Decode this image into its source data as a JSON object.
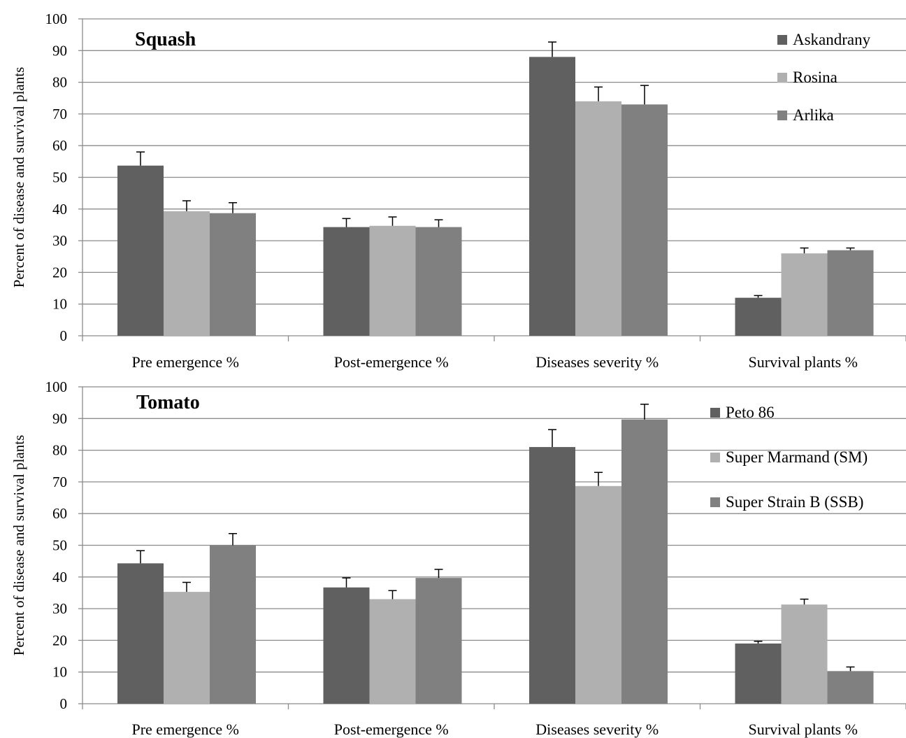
{
  "chart_data": [
    {
      "type": "bar",
      "title": "Squash",
      "ylabel": "Percent of disease and survival plants",
      "xlabel": "",
      "ylim": [
        0,
        100
      ],
      "yticks": [
        "0",
        "10",
        "20",
        "30",
        "40",
        "50",
        "60",
        "70",
        "80",
        "90",
        "100"
      ],
      "grid": true,
      "legend_position": "top-right",
      "categories": [
        "Pre emergence %",
        "Post-emergence %",
        "Diseases severity %",
        "Survival plants %"
      ],
      "series": [
        {
          "name": "Askandrany",
          "color": "#606060",
          "values": [
            53.7,
            34.3,
            88.0,
            12.0
          ],
          "errors": [
            4.3,
            2.7,
            4.7,
            0.7
          ]
        },
        {
          "name": "Rosina",
          "color": "#b0b0b0",
          "values": [
            39.3,
            34.7,
            74.0,
            26.0
          ],
          "errors": [
            3.3,
            2.8,
            4.5,
            1.7
          ]
        },
        {
          "name": "Arlika",
          "color": "#808080",
          "values": [
            38.7,
            34.3,
            73.0,
            27.0
          ],
          "errors": [
            3.3,
            2.3,
            6.0,
            0.7
          ]
        }
      ]
    },
    {
      "type": "bar",
      "title": "Tomato",
      "ylabel": "Percent of disease and survival plants",
      "xlabel": "",
      "ylim": [
        0,
        100
      ],
      "yticks": [
        "0",
        "10",
        "20",
        "30",
        "40",
        "50",
        "60",
        "70",
        "80",
        "90",
        "100"
      ],
      "grid": true,
      "legend_position": "top-right",
      "categories": [
        "Pre emergence %",
        "Post-emergence %",
        "Diseases severity %",
        "Survival plants %"
      ],
      "series": [
        {
          "name": "Peto 86",
          "color": "#606060",
          "values": [
            44.3,
            36.7,
            81.0,
            19.0
          ],
          "errors": [
            4.0,
            3.0,
            5.5,
            0.7
          ]
        },
        {
          "name": "Super Marmand (SM)",
          "color": "#b0b0b0",
          "values": [
            35.3,
            33.0,
            68.7,
            31.3
          ],
          "errors": [
            3.0,
            2.7,
            4.3,
            1.7
          ]
        },
        {
          "name": "Super Strain B (SSB)",
          "color": "#808080",
          "values": [
            50.0,
            39.7,
            89.7,
            10.3
          ],
          "errors": [
            3.7,
            2.7,
            4.8,
            1.3
          ]
        }
      ]
    }
  ]
}
